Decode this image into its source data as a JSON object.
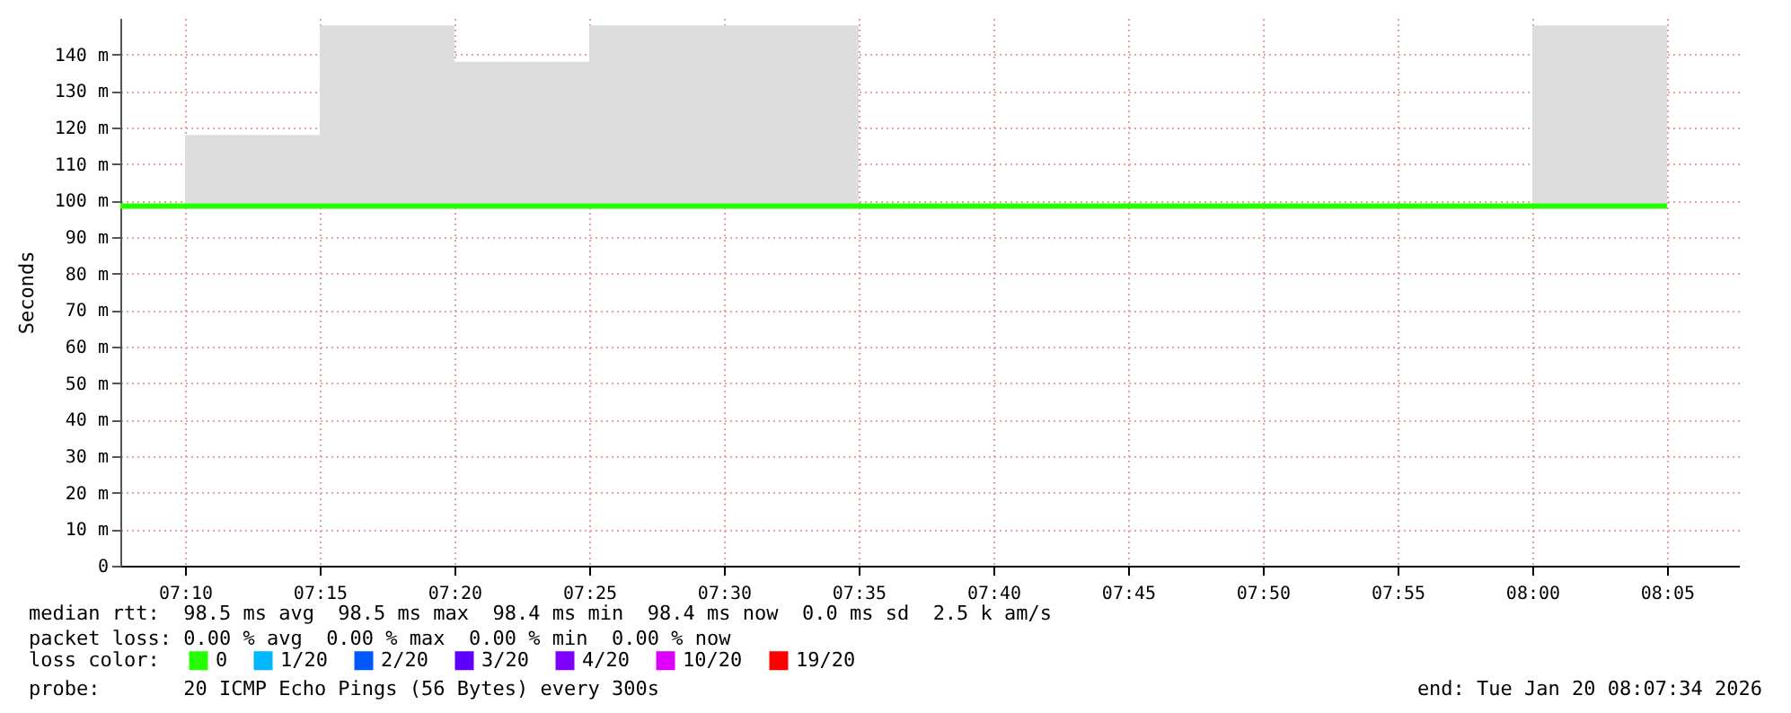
{
  "chart_data": {
    "type": "step",
    "ylabel": "Seconds",
    "legend_title": "loss color:",
    "legend": "bottom",
    "x": [
      7.1267,
      7.1667,
      7.25,
      7.3333,
      7.4167,
      7.5,
      7.5833,
      7.6667,
      7.75,
      7.8333,
      7.9167,
      8.0,
      8.0833
    ],
    "series": [
      {
        "name": "0",
        "color": "#26ff00",
        "values": [
          98.5,
          98.5,
          98.5,
          98.5,
          98.5,
          98.5,
          98.5,
          98.5,
          98.5,
          98.5,
          98.5,
          98.5,
          98.5
        ],
        "lower": [
          null,
          98.5,
          98.5,
          98.5,
          98.5,
          98.5,
          98.5,
          null,
          null,
          null,
          null,
          98.5,
          98.5
        ],
        "upper": [
          null,
          118,
          148,
          138,
          148,
          148,
          148,
          null,
          null,
          null,
          null,
          148,
          148
        ]
      },
      {
        "name": "1/20",
        "color": "#00b8ff",
        "values": [
          null,
          null,
          null,
          null,
          null,
          null,
          null,
          null,
          null,
          null,
          null,
          null,
          null
        ]
      },
      {
        "name": "2/20",
        "color": "#0059ff",
        "values": [
          null,
          null,
          null,
          null,
          null,
          null,
          null,
          null,
          null,
          null,
          null,
          null,
          null
        ]
      },
      {
        "name": "3/20",
        "color": "#5e00ff",
        "values": [
          null,
          null,
          null,
          null,
          null,
          null,
          null,
          null,
          null,
          null,
          null,
          null,
          null
        ]
      },
      {
        "name": "4/20",
        "color": "#7e00ff",
        "values": [
          null,
          null,
          null,
          null,
          null,
          null,
          null,
          null,
          null,
          null,
          null,
          null,
          null
        ]
      },
      {
        "name": "10/20",
        "color": "#dd00ff",
        "values": [
          null,
          null,
          null,
          null,
          null,
          null,
          null,
          null,
          null,
          null,
          null,
          null,
          null
        ]
      },
      {
        "name": "19/20",
        "color": "#ff0000",
        "values": [
          null,
          null,
          null,
          null,
          null,
          null,
          null,
          null,
          null,
          null,
          null,
          null,
          null
        ]
      }
    ],
    "xlim": [
      7.1267,
      8.1278
    ],
    "xticks": [
      {
        "value": 7.1667,
        "label": "07:10"
      },
      {
        "value": 7.25,
        "label": "07:15"
      },
      {
        "value": 7.3333,
        "label": "07:20"
      },
      {
        "value": 7.4167,
        "label": "07:25"
      },
      {
        "value": 7.5,
        "label": "07:30"
      },
      {
        "value": 7.5833,
        "label": "07:35"
      },
      {
        "value": 7.6667,
        "label": "07:40"
      },
      {
        "value": 7.75,
        "label": "07:45"
      },
      {
        "value": 7.8333,
        "label": "07:50"
      },
      {
        "value": 7.9167,
        "label": "07:55"
      },
      {
        "value": 8.0,
        "label": "08:00"
      },
      {
        "value": 8.0833,
        "label": "08:05"
      }
    ],
    "ylim": [
      0,
      150
    ],
    "yticks": [
      0,
      {
        "value": 10,
        "label": "10 m"
      },
      {
        "value": 20,
        "label": "20 m"
      },
      {
        "value": 30,
        "label": "30 m"
      },
      {
        "value": 40,
        "label": "40 m"
      },
      {
        "value": 50,
        "label": "50 m"
      },
      {
        "value": 60,
        "label": "60 m"
      },
      {
        "value": 70,
        "label": "70 m"
      },
      {
        "value": 80,
        "label": "80 m"
      },
      {
        "value": 90,
        "label": "90 m"
      },
      {
        "value": 100,
        "label": "100 m"
      },
      {
        "value": 110,
        "label": "110 m"
      },
      {
        "value": 120,
        "label": "120 m"
      },
      {
        "value": 130,
        "label": "130 m"
      },
      {
        "value": 140,
        "label": "140 m"
      }
    ],
    "grid": true,
    "annotations": [
      "median rtt:  98.5 ms avg  98.5 ms max  98.4 ms min  98.4 ms now  0.0 ms sd  2.5 k am/s",
      "packet loss: 0.00 % avg  0.00 % max  0.00 % min  0.00 % now",
      "probe:       20 ICMP Echo Pings (56 Bytes) every 300s",
      "end: Tue Jan 20 08:07:34 2026"
    ]
  }
}
